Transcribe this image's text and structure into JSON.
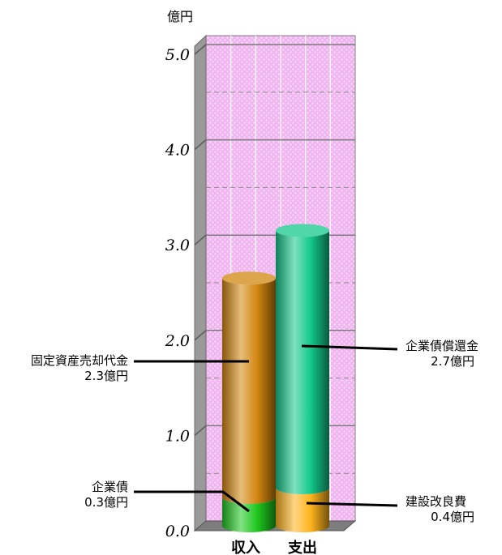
{
  "chart_data": {
    "type": "bar",
    "stacked": true,
    "unit_label": "億円",
    "categories": [
      "収入",
      "支出"
    ],
    "ylim": [
      0,
      5
    ],
    "yticks": [
      "0.0",
      "1.0",
      "2.0",
      "3.0",
      "4.0",
      "5.0"
    ],
    "grid": true,
    "stacks": [
      {
        "category": "収入",
        "segments": [
          {
            "name": "企業債",
            "value": 0.3,
            "color": "#1ec81e",
            "annotation": [
              "企業債",
              "0.3億円"
            ],
            "side": "left"
          },
          {
            "name": "固定資産売却代金",
            "value": 2.3,
            "color": "#d2870f",
            "annotation": [
              "固定資産売却代金",
              "2.3億円"
            ],
            "side": "left"
          }
        ]
      },
      {
        "category": "支出",
        "segments": [
          {
            "name": "建設改良費",
            "value": 0.4,
            "color": "#ffb41e",
            "annotation": [
              "建設改良費",
              "0.4億円"
            ],
            "side": "right"
          },
          {
            "name": "企業債償還金",
            "value": 2.7,
            "color": "#14c88c",
            "annotation": [
              "企業債償還金",
              "2.7億円"
            ],
            "side": "right"
          }
        ]
      }
    ],
    "colors": {
      "plot_bg": "#f4c8f4",
      "plot_grid": "#ffffff",
      "floor": "#7d7d7d",
      "wall_side": "#9a9a9a"
    }
  }
}
